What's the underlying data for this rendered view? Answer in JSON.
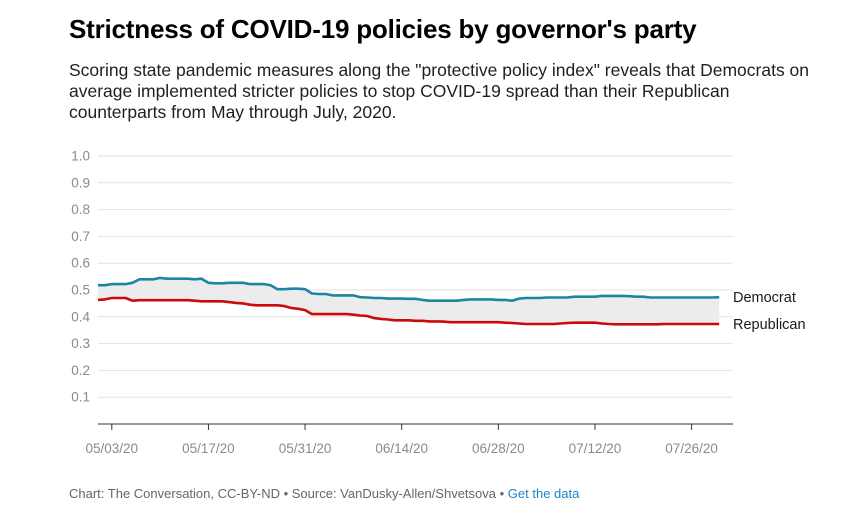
{
  "header": {
    "title": "Strictness of COVID-19 policies by governor's party",
    "subtitle": "Scoring state pandemic measures along the \"protective policy index\" reveals that Democrats on average implemented stricter policies to stop COVID-19 spread than their Republican counterparts from May through July, 2020."
  },
  "footer": {
    "credit": "Chart: The Conversation, CC-BY-ND • Source: VanDusky-Allen/Shvetsova • ",
    "link": "Get the data"
  },
  "colors": {
    "democrat": "#1b86a4",
    "republican": "#cc0a0a",
    "band": "#ececec",
    "grid": "#e2e2e2",
    "tick": "#8a8a8a"
  },
  "chart_data": {
    "type": "line",
    "ylim": [
      0,
      1.0
    ],
    "yticks": [
      1.0,
      0.9,
      0.8,
      0.7,
      0.6,
      0.5,
      0.4,
      0.3,
      0.2,
      0.1
    ],
    "ytick_labels": [
      "1.0",
      "0.9",
      "0.8",
      "0.7",
      "0.6",
      "0.5",
      "0.4",
      "0.3",
      "0.2",
      "0.1"
    ],
    "x_start": "2020-05-01",
    "x_end": "2020-08-01",
    "xticks": [
      "2020-05-03",
      "2020-05-17",
      "2020-05-31",
      "2020-06-14",
      "2020-06-28",
      "2020-07-12",
      "2020-07-26"
    ],
    "xtick_labels": [
      "05/03/20",
      "05/17/20",
      "05/31/20",
      "06/14/20",
      "06/28/20",
      "07/12/20",
      "07/26/20"
    ],
    "fill_between": true,
    "series": [
      {
        "name": "Democrat",
        "points": [
          [
            "2020-05-01",
            0.518
          ],
          [
            "2020-05-02",
            0.518
          ],
          [
            "2020-05-03",
            0.522
          ],
          [
            "2020-05-04",
            0.522
          ],
          [
            "2020-05-05",
            0.522
          ],
          [
            "2020-05-06",
            0.527
          ],
          [
            "2020-05-07",
            0.54
          ],
          [
            "2020-05-08",
            0.54
          ],
          [
            "2020-05-09",
            0.54
          ],
          [
            "2020-05-10",
            0.545
          ],
          [
            "2020-05-11",
            0.542
          ],
          [
            "2020-05-12",
            0.542
          ],
          [
            "2020-05-13",
            0.542
          ],
          [
            "2020-05-14",
            0.542
          ],
          [
            "2020-05-15",
            0.54
          ],
          [
            "2020-05-16",
            0.542
          ],
          [
            "2020-05-17",
            0.527
          ],
          [
            "2020-05-18",
            0.525
          ],
          [
            "2020-05-19",
            0.525
          ],
          [
            "2020-05-20",
            0.527
          ],
          [
            "2020-05-21",
            0.527
          ],
          [
            "2020-05-22",
            0.527
          ],
          [
            "2020-05-23",
            0.522
          ],
          [
            "2020-05-24",
            0.522
          ],
          [
            "2020-05-25",
            0.522
          ],
          [
            "2020-05-26",
            0.518
          ],
          [
            "2020-05-27",
            0.503
          ],
          [
            "2020-05-28",
            0.503
          ],
          [
            "2020-05-29",
            0.505
          ],
          [
            "2020-05-30",
            0.505
          ],
          [
            "2020-05-31",
            0.503
          ],
          [
            "2020-06-01",
            0.487
          ],
          [
            "2020-06-02",
            0.485
          ],
          [
            "2020-06-03",
            0.485
          ],
          [
            "2020-06-04",
            0.48
          ],
          [
            "2020-06-05",
            0.48
          ],
          [
            "2020-06-06",
            0.48
          ],
          [
            "2020-06-07",
            0.48
          ],
          [
            "2020-06-08",
            0.473
          ],
          [
            "2020-06-09",
            0.472
          ],
          [
            "2020-06-10",
            0.47
          ],
          [
            "2020-06-11",
            0.47
          ],
          [
            "2020-06-12",
            0.468
          ],
          [
            "2020-06-13",
            0.468
          ],
          [
            "2020-06-14",
            0.468
          ],
          [
            "2020-06-15",
            0.467
          ],
          [
            "2020-06-16",
            0.467
          ],
          [
            "2020-06-17",
            0.463
          ],
          [
            "2020-06-18",
            0.46
          ],
          [
            "2020-06-19",
            0.46
          ],
          [
            "2020-06-20",
            0.46
          ],
          [
            "2020-06-21",
            0.46
          ],
          [
            "2020-06-22",
            0.46
          ],
          [
            "2020-06-23",
            0.463
          ],
          [
            "2020-06-24",
            0.465
          ],
          [
            "2020-06-25",
            0.465
          ],
          [
            "2020-06-26",
            0.465
          ],
          [
            "2020-06-27",
            0.465
          ],
          [
            "2020-06-28",
            0.463
          ],
          [
            "2020-06-29",
            0.463
          ],
          [
            "2020-06-30",
            0.46
          ],
          [
            "2020-07-01",
            0.468
          ],
          [
            "2020-07-02",
            0.47
          ],
          [
            "2020-07-03",
            0.47
          ],
          [
            "2020-07-04",
            0.47
          ],
          [
            "2020-07-05",
            0.472
          ],
          [
            "2020-07-06",
            0.472
          ],
          [
            "2020-07-07",
            0.472
          ],
          [
            "2020-07-08",
            0.472
          ],
          [
            "2020-07-09",
            0.475
          ],
          [
            "2020-07-10",
            0.475
          ],
          [
            "2020-07-11",
            0.475
          ],
          [
            "2020-07-12",
            0.475
          ],
          [
            "2020-07-13",
            0.478
          ],
          [
            "2020-07-14",
            0.478
          ],
          [
            "2020-07-15",
            0.478
          ],
          [
            "2020-07-16",
            0.478
          ],
          [
            "2020-07-17",
            0.477
          ],
          [
            "2020-07-18",
            0.475
          ],
          [
            "2020-07-19",
            0.475
          ],
          [
            "2020-07-20",
            0.472
          ],
          [
            "2020-07-21",
            0.472
          ],
          [
            "2020-07-22",
            0.472
          ],
          [
            "2020-07-23",
            0.472
          ],
          [
            "2020-07-24",
            0.472
          ],
          [
            "2020-07-25",
            0.472
          ],
          [
            "2020-07-26",
            0.472
          ],
          [
            "2020-07-27",
            0.472
          ],
          [
            "2020-07-28",
            0.472
          ],
          [
            "2020-07-29",
            0.472
          ],
          [
            "2020-07-30",
            0.473
          ]
        ]
      },
      {
        "name": "Republican",
        "points": [
          [
            "2020-05-01",
            0.463
          ],
          [
            "2020-05-02",
            0.465
          ],
          [
            "2020-05-03",
            0.47
          ],
          [
            "2020-05-04",
            0.47
          ],
          [
            "2020-05-05",
            0.47
          ],
          [
            "2020-05-06",
            0.46
          ],
          [
            "2020-05-07",
            0.462
          ],
          [
            "2020-05-08",
            0.462
          ],
          [
            "2020-05-09",
            0.462
          ],
          [
            "2020-05-10",
            0.462
          ],
          [
            "2020-05-11",
            0.462
          ],
          [
            "2020-05-12",
            0.462
          ],
          [
            "2020-05-13",
            0.462
          ],
          [
            "2020-05-14",
            0.462
          ],
          [
            "2020-05-15",
            0.46
          ],
          [
            "2020-05-16",
            0.458
          ],
          [
            "2020-05-17",
            0.458
          ],
          [
            "2020-05-18",
            0.458
          ],
          [
            "2020-05-19",
            0.458
          ],
          [
            "2020-05-20",
            0.455
          ],
          [
            "2020-05-21",
            0.452
          ],
          [
            "2020-05-22",
            0.45
          ],
          [
            "2020-05-23",
            0.445
          ],
          [
            "2020-05-24",
            0.443
          ],
          [
            "2020-05-25",
            0.443
          ],
          [
            "2020-05-26",
            0.443
          ],
          [
            "2020-05-27",
            0.443
          ],
          [
            "2020-05-28",
            0.44
          ],
          [
            "2020-05-29",
            0.433
          ],
          [
            "2020-05-30",
            0.43
          ],
          [
            "2020-05-31",
            0.425
          ],
          [
            "2020-06-01",
            0.41
          ],
          [
            "2020-06-02",
            0.41
          ],
          [
            "2020-06-03",
            0.41
          ],
          [
            "2020-06-04",
            0.41
          ],
          [
            "2020-06-05",
            0.41
          ],
          [
            "2020-06-06",
            0.41
          ],
          [
            "2020-06-07",
            0.408
          ],
          [
            "2020-06-08",
            0.405
          ],
          [
            "2020-06-09",
            0.403
          ],
          [
            "2020-06-10",
            0.395
          ],
          [
            "2020-06-11",
            0.392
          ],
          [
            "2020-06-12",
            0.39
          ],
          [
            "2020-06-13",
            0.387
          ],
          [
            "2020-06-14",
            0.387
          ],
          [
            "2020-06-15",
            0.387
          ],
          [
            "2020-06-16",
            0.385
          ],
          [
            "2020-06-17",
            0.385
          ],
          [
            "2020-06-18",
            0.383
          ],
          [
            "2020-06-19",
            0.383
          ],
          [
            "2020-06-20",
            0.382
          ],
          [
            "2020-06-21",
            0.38
          ],
          [
            "2020-06-22",
            0.38
          ],
          [
            "2020-06-23",
            0.38
          ],
          [
            "2020-06-24",
            0.38
          ],
          [
            "2020-06-25",
            0.38
          ],
          [
            "2020-06-26",
            0.38
          ],
          [
            "2020-06-27",
            0.38
          ],
          [
            "2020-06-28",
            0.38
          ],
          [
            "2020-06-29",
            0.378
          ],
          [
            "2020-06-30",
            0.377
          ],
          [
            "2020-07-01",
            0.375
          ],
          [
            "2020-07-02",
            0.373
          ],
          [
            "2020-07-03",
            0.373
          ],
          [
            "2020-07-04",
            0.373
          ],
          [
            "2020-07-05",
            0.373
          ],
          [
            "2020-07-06",
            0.373
          ],
          [
            "2020-07-07",
            0.375
          ],
          [
            "2020-07-08",
            0.377
          ],
          [
            "2020-07-09",
            0.378
          ],
          [
            "2020-07-10",
            0.378
          ],
          [
            "2020-07-11",
            0.378
          ],
          [
            "2020-07-12",
            0.378
          ],
          [
            "2020-07-13",
            0.375
          ],
          [
            "2020-07-14",
            0.373
          ],
          [
            "2020-07-15",
            0.372
          ],
          [
            "2020-07-16",
            0.372
          ],
          [
            "2020-07-17",
            0.372
          ],
          [
            "2020-07-18",
            0.372
          ],
          [
            "2020-07-19",
            0.372
          ],
          [
            "2020-07-20",
            0.372
          ],
          [
            "2020-07-21",
            0.372
          ],
          [
            "2020-07-22",
            0.373
          ],
          [
            "2020-07-23",
            0.373
          ],
          [
            "2020-07-24",
            0.373
          ],
          [
            "2020-07-25",
            0.373
          ],
          [
            "2020-07-26",
            0.373
          ],
          [
            "2020-07-27",
            0.373
          ],
          [
            "2020-07-28",
            0.373
          ],
          [
            "2020-07-29",
            0.373
          ],
          [
            "2020-07-30",
            0.373
          ]
        ]
      }
    ]
  }
}
